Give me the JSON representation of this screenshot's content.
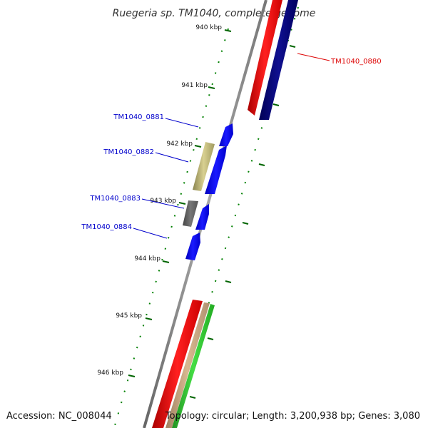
{
  "title": "Ruegeria sp. TM1040, complete genome",
  "footer": {
    "accession": "Accession: NC_008044",
    "topology": "Topology: circular; Length: 3,200,938 bp; Genes: 3,080"
  },
  "ticks": [
    "940 kbp",
    "941 kbp",
    "942 kbp",
    "943 kbp",
    "944 kbp",
    "945 kbp",
    "946 kbp"
  ],
  "genes": [
    {
      "label": "TM1040_0880",
      "color": "#dd0000"
    },
    {
      "label": "TM1040_0881",
      "color": "#0000cc"
    },
    {
      "label": "TM1040_0882",
      "color": "#0000cc"
    },
    {
      "label": "TM1040_0883",
      "color": "#0000cc"
    },
    {
      "label": "TM1040_0884",
      "color": "#0000cc"
    }
  ],
  "colors": {
    "backbone": "#888888",
    "red": "#ff0000",
    "navy": "#00007a",
    "blue": "#0000ff",
    "khaki": "#bdb76b",
    "gray": "#666666",
    "green": "#33cc33",
    "tick": "#006400"
  }
}
